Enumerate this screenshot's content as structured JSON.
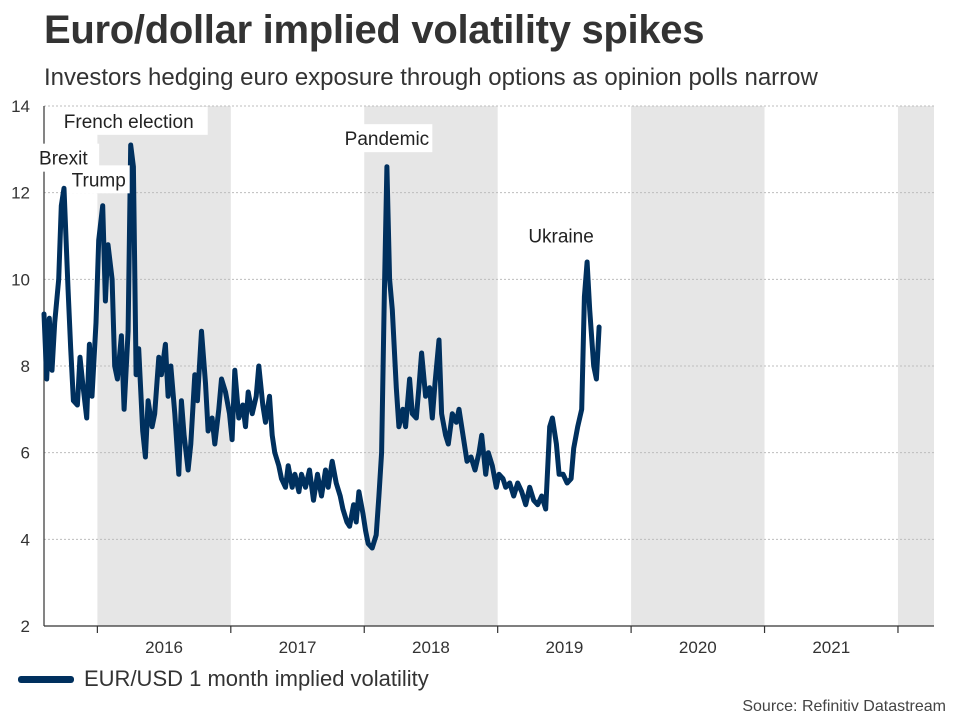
{
  "header": {
    "title": "Euro/dollar implied volatility spikes",
    "subtitle": "Investors hedging euro exposure through options as opinion polls narrow"
  },
  "legend": {
    "label": "EUR/USD 1 month implied volatility"
  },
  "source": "Source: Refinitiv Datastream",
  "colors": {
    "line": "#00305e",
    "band": "#e6e6e6",
    "grid": "#bdbdbd",
    "text": "#333333"
  },
  "chart_data": {
    "type": "line",
    "title": "Euro/dollar implied volatility spikes",
    "subtitle": "Investors hedging euro exposure through options as opinion polls narrow",
    "xlabel": "",
    "ylabel": "",
    "xlim": [
      2015.6,
      2022.27
    ],
    "ylim": [
      2,
      14
    ],
    "yticks": [
      2,
      4,
      6,
      8,
      10,
      12,
      14
    ],
    "year_ticks": [
      "2016",
      "2017",
      "2018",
      "2019",
      "2020",
      "2021"
    ],
    "shaded_years": [
      "2016",
      "2018",
      "2020",
      "2022"
    ],
    "grid": "horizontal",
    "legend": "bottom-left",
    "series": [
      {
        "name": "EUR/USD 1 month implied volatility",
        "points": [
          [
            2015.6,
            9.2
          ],
          [
            2015.62,
            7.7
          ],
          [
            2015.64,
            9.1
          ],
          [
            2015.66,
            7.9
          ],
          [
            2015.68,
            9.0
          ],
          [
            2015.71,
            10.0
          ],
          [
            2015.73,
            11.7
          ],
          [
            2015.75,
            12.1
          ],
          [
            2015.78,
            9.8
          ],
          [
            2015.8,
            8.4
          ],
          [
            2015.82,
            7.2
          ],
          [
            2015.85,
            7.1
          ],
          [
            2015.87,
            8.2
          ],
          [
            2015.89,
            7.6
          ],
          [
            2015.92,
            6.8
          ],
          [
            2015.94,
            8.5
          ],
          [
            2015.96,
            7.3
          ],
          [
            2015.99,
            9.0
          ],
          [
            2016.01,
            10.9
          ],
          [
            2016.04,
            11.7
          ],
          [
            2016.06,
            9.5
          ],
          [
            2016.08,
            10.8
          ],
          [
            2016.11,
            10.0
          ],
          [
            2016.13,
            8.0
          ],
          [
            2016.15,
            7.7
          ],
          [
            2016.18,
            8.7
          ],
          [
            2016.2,
            7.0
          ],
          [
            2016.23,
            8.8
          ],
          [
            2016.25,
            13.1
          ],
          [
            2016.27,
            12.6
          ],
          [
            2016.29,
            7.8
          ],
          [
            2016.31,
            8.4
          ],
          [
            2016.34,
            6.5
          ],
          [
            2016.36,
            5.9
          ],
          [
            2016.38,
            7.2
          ],
          [
            2016.41,
            6.6
          ],
          [
            2016.43,
            6.9
          ],
          [
            2016.46,
            8.2
          ],
          [
            2016.48,
            7.8
          ],
          [
            2016.51,
            8.5
          ],
          [
            2016.53,
            7.3
          ],
          [
            2016.55,
            8.0
          ],
          [
            2016.58,
            6.9
          ],
          [
            2016.61,
            5.5
          ],
          [
            2016.63,
            7.2
          ],
          [
            2016.65,
            6.4
          ],
          [
            2016.68,
            5.6
          ],
          [
            2016.7,
            6.2
          ],
          [
            2016.73,
            7.8
          ],
          [
            2016.75,
            7.2
          ],
          [
            2016.78,
            8.8
          ],
          [
            2016.81,
            7.6
          ],
          [
            2016.83,
            6.5
          ],
          [
            2016.86,
            6.8
          ],
          [
            2016.88,
            6.2
          ],
          [
            2016.91,
            7.0
          ],
          [
            2016.93,
            7.7
          ],
          [
            2016.96,
            7.4
          ],
          [
            2016.99,
            6.9
          ],
          [
            2017.01,
            6.3
          ],
          [
            2017.03,
            7.9
          ],
          [
            2017.06,
            6.8
          ],
          [
            2017.09,
            7.1
          ],
          [
            2017.11,
            6.6
          ],
          [
            2017.13,
            7.4
          ],
          [
            2017.16,
            6.9
          ],
          [
            2017.19,
            7.3
          ],
          [
            2017.21,
            8.0
          ],
          [
            2017.24,
            7.1
          ],
          [
            2017.26,
            6.7
          ],
          [
            2017.29,
            7.3
          ],
          [
            2017.31,
            6.4
          ],
          [
            2017.33,
            6.0
          ],
          [
            2017.36,
            5.7
          ],
          [
            2017.38,
            5.4
          ],
          [
            2017.41,
            5.2
          ],
          [
            2017.43,
            5.7
          ],
          [
            2017.46,
            5.2
          ],
          [
            2017.48,
            5.5
          ],
          [
            2017.51,
            5.1
          ],
          [
            2017.53,
            5.5
          ],
          [
            2017.56,
            5.2
          ],
          [
            2017.59,
            5.6
          ],
          [
            2017.62,
            4.9
          ],
          [
            2017.65,
            5.5
          ],
          [
            2017.68,
            5.0
          ],
          [
            2017.71,
            5.6
          ],
          [
            2017.73,
            5.2
          ],
          [
            2017.76,
            5.8
          ],
          [
            2017.79,
            5.3
          ],
          [
            2017.82,
            5.0
          ],
          [
            2017.84,
            4.7
          ],
          [
            2017.87,
            4.4
          ],
          [
            2017.89,
            4.3
          ],
          [
            2017.92,
            4.8
          ],
          [
            2017.94,
            4.4
          ],
          [
            2017.96,
            5.1
          ],
          [
            2017.99,
            4.6
          ],
          [
            2018.01,
            4.2
          ],
          [
            2018.03,
            3.9
          ],
          [
            2018.06,
            3.8
          ],
          [
            2018.09,
            4.1
          ],
          [
            2018.11,
            5.0
          ],
          [
            2018.13,
            6.0
          ],
          [
            2018.15,
            9.6
          ],
          [
            2018.17,
            12.6
          ],
          [
            2018.19,
            10.0
          ],
          [
            2018.21,
            9.3
          ],
          [
            2018.24,
            7.5
          ],
          [
            2018.26,
            6.6
          ],
          [
            2018.29,
            7.0
          ],
          [
            2018.31,
            6.6
          ],
          [
            2018.34,
            7.7
          ],
          [
            2018.36,
            6.9
          ],
          [
            2018.39,
            6.8
          ],
          [
            2018.41,
            7.5
          ],
          [
            2018.43,
            8.3
          ],
          [
            2018.46,
            7.3
          ],
          [
            2018.49,
            7.5
          ],
          [
            2018.51,
            6.8
          ],
          [
            2018.53,
            7.6
          ],
          [
            2018.56,
            8.6
          ],
          [
            2018.58,
            6.9
          ],
          [
            2018.61,
            6.4
          ],
          [
            2018.63,
            6.2
          ],
          [
            2018.66,
            6.9
          ],
          [
            2018.69,
            6.7
          ],
          [
            2018.71,
            7.0
          ],
          [
            2018.74,
            6.4
          ],
          [
            2018.77,
            5.8
          ],
          [
            2018.8,
            5.9
          ],
          [
            2018.83,
            5.6
          ],
          [
            2018.86,
            6.0
          ],
          [
            2018.88,
            6.4
          ],
          [
            2018.91,
            5.5
          ],
          [
            2018.93,
            6.0
          ],
          [
            2018.96,
            5.7
          ],
          [
            2018.99,
            5.2
          ],
          [
            2019.01,
            5.5
          ],
          [
            2019.04,
            5.4
          ],
          [
            2019.06,
            5.2
          ],
          [
            2019.09,
            5.3
          ],
          [
            2019.12,
            5.0
          ],
          [
            2019.15,
            5.3
          ],
          [
            2019.18,
            5.1
          ],
          [
            2019.21,
            4.8
          ],
          [
            2019.24,
            5.2
          ],
          [
            2019.27,
            4.9
          ],
          [
            2019.3,
            4.8
          ],
          [
            2019.33,
            5.0
          ],
          [
            2019.36,
            4.7
          ],
          [
            2019.39,
            6.6
          ],
          [
            2019.41,
            6.8
          ],
          [
            2019.44,
            6.2
          ],
          [
            2019.46,
            5.5
          ],
          [
            2019.49,
            5.5
          ],
          [
            2019.52,
            5.3
          ],
          [
            2019.55,
            5.4
          ],
          [
            2019.57,
            6.1
          ],
          [
            2019.6,
            6.6
          ],
          [
            2019.63,
            7.0
          ],
          [
            2019.65,
            9.6
          ],
          [
            2019.67,
            10.4
          ],
          [
            2019.69,
            9.3
          ],
          [
            2019.72,
            8.0
          ],
          [
            2019.74,
            7.7
          ],
          [
            2019.76,
            8.9
          ]
        ]
      }
    ],
    "annotations": [
      {
        "label": "Brexit"
      },
      {
        "label": "Trump"
      },
      {
        "label": "French election"
      },
      {
        "label": "Pandemic"
      },
      {
        "label": "Ukraine"
      }
    ]
  }
}
